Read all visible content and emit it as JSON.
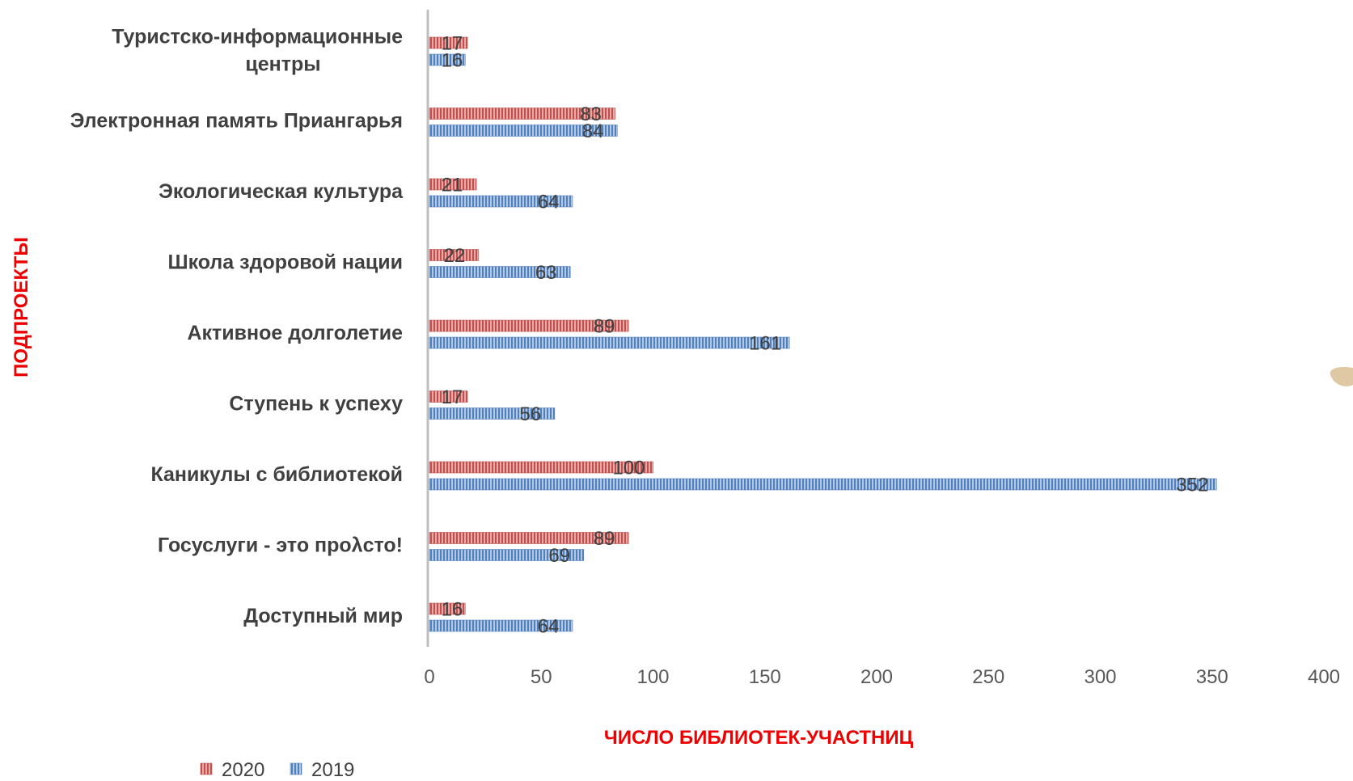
{
  "chart_data": {
    "type": "bar",
    "orientation": "horizontal",
    "categories": [
      "Туристско-информационные центры",
      "Электронная память Приангарья",
      "Экологическая культура",
      "Школа здоровой нации",
      "Активное долголетие",
      "Ступень к успеху",
      "Каникулы с библиотекой",
      "Госуслуги - это прολсто!",
      "Доступный мир"
    ],
    "series": [
      {
        "name": "2020",
        "color": "#c0504d",
        "values": [
          17,
          83,
          21,
          22,
          89,
          17,
          100,
          89,
          16
        ]
      },
      {
        "name": "2019",
        "color": "#4f81bd",
        "values": [
          16,
          84,
          64,
          63,
          161,
          56,
          352,
          69,
          64
        ]
      }
    ],
    "xlabel": "ЧИСЛО БИБЛИОТЕК-УЧАСТНИЦ",
    "ylabel": "ПОДПРОЕКТЫ",
    "xlim": [
      0,
      400
    ],
    "xticks": [
      0,
      50,
      100,
      150,
      200,
      250,
      300,
      350,
      400
    ],
    "grid": false,
    "legend": "bottom-left",
    "bar_pattern": "vertical-stripes"
  }
}
